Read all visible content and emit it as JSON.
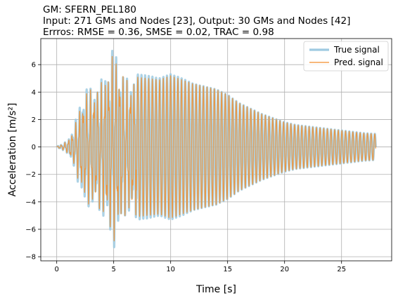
{
  "chart_data": {
    "type": "line",
    "title_lines": [
      "GM: SFERN_PEL180",
      "Input: 271 GMs and Nodes [23], Output: 30 GMs and Nodes [42]",
      "Errros: RMSE = 0.36, SMSE = 0.02, TRAC = 0.98"
    ],
    "xlabel": "Time [s]",
    "ylabel": "Acceleration [m/s²]",
    "xlim": [
      -1.4,
      29.4
    ],
    "ylim": [
      -8.3,
      7.9
    ],
    "x_ticks": [
      0,
      5,
      10,
      15,
      20,
      25
    ],
    "y_ticks": [
      -8,
      -6,
      -4,
      -2,
      0,
      2,
      4,
      6
    ],
    "grid": true,
    "legend_position": "top-right",
    "series": [
      {
        "name": "True signal",
        "color": "#9ecae1",
        "time_range": [
          0,
          28
        ],
        "envelope": [
          [
            0,
            0.05
          ],
          [
            0.5,
            0.2
          ],
          [
            1,
            0.5
          ],
          [
            1.5,
            1.5
          ],
          [
            2,
            3.0
          ],
          [
            2.5,
            4.5
          ],
          [
            3,
            4.3
          ],
          [
            3.5,
            4.5
          ],
          [
            4,
            5.0
          ],
          [
            4.5,
            6.0
          ],
          [
            5,
            7.5
          ],
          [
            5.5,
            6.2
          ],
          [
            6,
            5.0
          ],
          [
            7,
            5.3
          ],
          [
            8,
            5.2
          ],
          [
            9,
            5.0
          ],
          [
            10,
            5.3
          ],
          [
            11,
            5.0
          ],
          [
            12,
            4.6
          ],
          [
            13,
            4.4
          ],
          [
            14,
            4.2
          ],
          [
            15,
            3.8
          ],
          [
            16,
            3.2
          ],
          [
            17,
            2.8
          ],
          [
            18,
            2.4
          ],
          [
            19,
            2.1
          ],
          [
            20,
            1.8
          ],
          [
            21,
            1.6
          ],
          [
            22,
            1.5
          ],
          [
            23,
            1.4
          ],
          [
            24,
            1.3
          ],
          [
            25,
            1.2
          ],
          [
            26,
            1.1
          ],
          [
            27,
            1.0
          ],
          [
            28,
            0.95
          ]
        ],
        "dominant_period_s": 0.32
      },
      {
        "name": "Pred. signal",
        "color": "#f28e2b",
        "time_range": [
          0,
          28
        ],
        "envelope": [
          [
            0,
            0.05
          ],
          [
            0.5,
            0.2
          ],
          [
            1,
            0.5
          ],
          [
            1.5,
            1.3
          ],
          [
            2,
            2.8
          ],
          [
            2.5,
            4.0
          ],
          [
            3,
            4.3
          ],
          [
            3.5,
            4.4
          ],
          [
            4,
            4.8
          ],
          [
            4.5,
            5.8
          ],
          [
            5,
            7.0
          ],
          [
            5.5,
            6.0
          ],
          [
            6,
            5.0
          ],
          [
            7,
            5.1
          ],
          [
            8,
            5.0
          ],
          [
            9,
            4.9
          ],
          [
            10,
            5.2
          ],
          [
            11,
            4.9
          ],
          [
            12,
            4.6
          ],
          [
            13,
            4.4
          ],
          [
            14,
            4.2
          ],
          [
            15,
            3.8
          ],
          [
            16,
            3.2
          ],
          [
            17,
            2.8
          ],
          [
            18,
            2.4
          ],
          [
            19,
            2.1
          ],
          [
            20,
            1.8
          ],
          [
            21,
            1.6
          ],
          [
            22,
            1.5
          ],
          [
            23,
            1.4
          ],
          [
            24,
            1.3
          ],
          [
            25,
            1.2
          ],
          [
            26,
            1.1
          ],
          [
            27,
            1.0
          ],
          [
            28,
            0.95
          ]
        ],
        "dominant_period_s": 0.32
      }
    ]
  }
}
